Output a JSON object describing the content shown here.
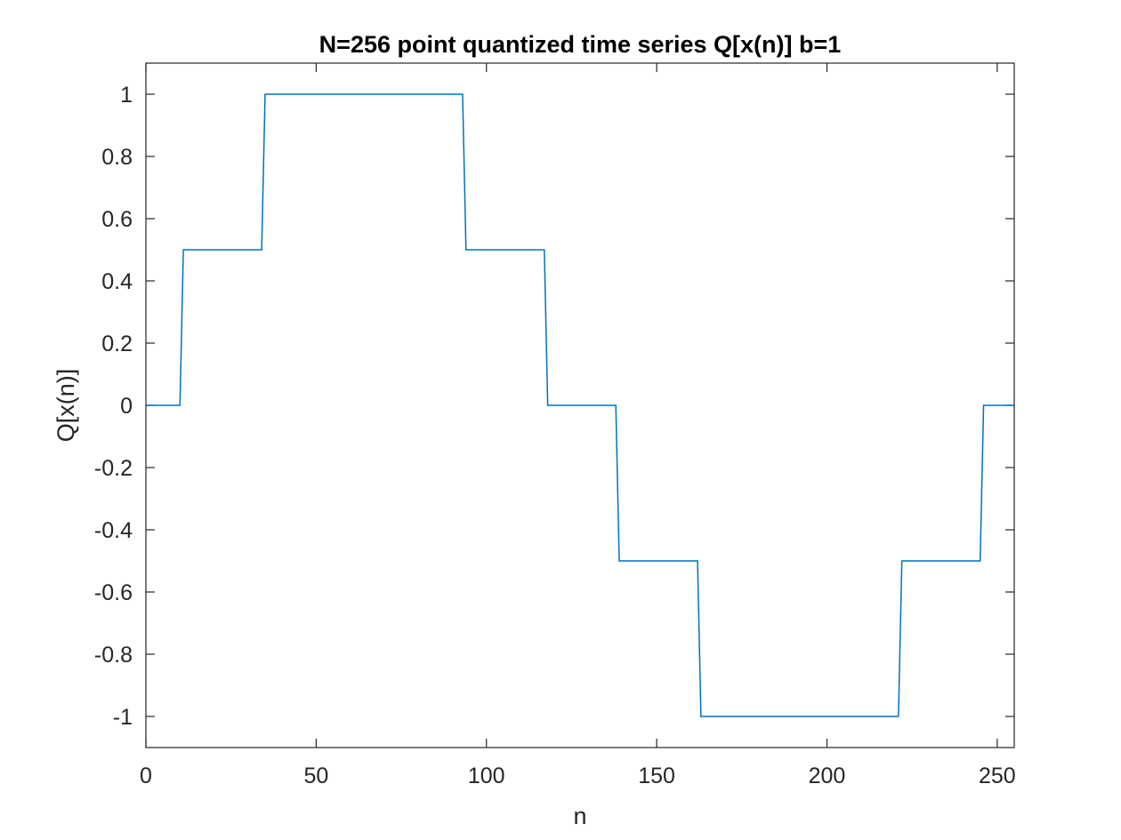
{
  "colors": {
    "series": "#0072BD",
    "axis": "#262626",
    "background": "#ffffff"
  },
  "chart_data": {
    "type": "line",
    "title": "N=256 point quantized time series Q[x(n)] b=1",
    "xlabel": "n",
    "ylabel": "Q[x(n)]",
    "xlim": [
      0,
      255
    ],
    "ylim": [
      -1.1,
      1.1
    ],
    "xticks": [
      0,
      50,
      100,
      150,
      200,
      250
    ],
    "xtick_labels": [
      "0",
      "50",
      "100",
      "150",
      "200",
      "250"
    ],
    "yticks": [
      -1,
      -0.8,
      -0.6,
      -0.4,
      -0.2,
      0,
      0.2,
      0.4,
      0.6,
      0.8,
      1
    ],
    "ytick_labels": [
      "-1",
      "-0.8",
      "-0.6",
      "-0.4",
      "-0.2",
      "0",
      "0.2",
      "0.4",
      "0.6",
      "0.8",
      "1"
    ],
    "grid": false,
    "series": [
      {
        "name": "Q[x(n)]",
        "x": [
          0,
          10,
          11,
          34,
          35,
          93,
          94,
          117,
          118,
          138,
          139,
          162,
          163,
          221,
          222,
          245,
          246,
          255
        ],
        "y": [
          0,
          0,
          0.5,
          0.5,
          1,
          1,
          0.5,
          0.5,
          0,
          0,
          -0.5,
          -0.5,
          -1,
          -1,
          -0.5,
          -0.5,
          0,
          0
        ]
      }
    ]
  }
}
